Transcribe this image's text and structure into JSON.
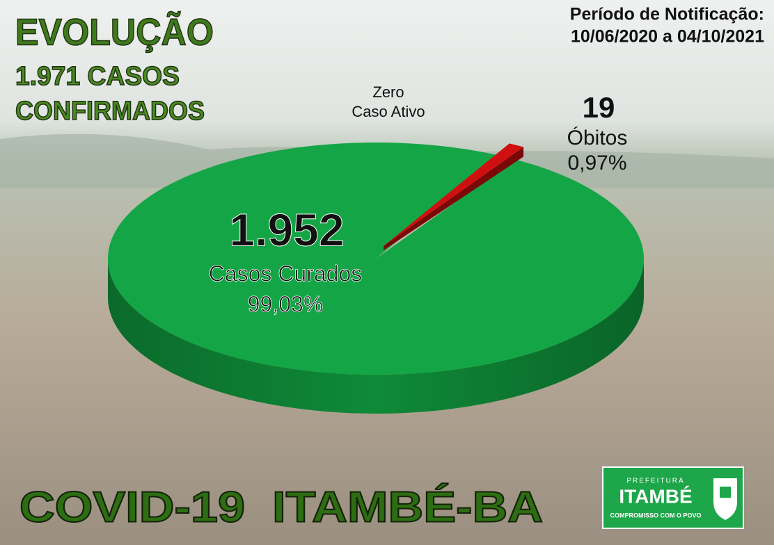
{
  "chart_data": {
    "type": "pie",
    "title": "EVOLUÇÃO",
    "subtitle": [
      "1.971 CASOS",
      "CONFIRMADOS"
    ],
    "period": [
      "Período de Notificação:",
      "10/06/2020 a 04/10/2021"
    ],
    "annotation": [
      "Zero",
      "Caso Ativo"
    ],
    "categories": [
      "Casos Curados",
      "Óbitos"
    ],
    "values": [
      1952,
      19
    ],
    "value_labels": [
      "1.952",
      "19"
    ],
    "percent_labels": [
      "99,03%",
      "0,97%"
    ],
    "colors": [
      "#14a646",
      "#d01010"
    ]
  },
  "footer": "COVID-19  ITAMBÉ-BA",
  "logo": {
    "top": "PREFEITURA",
    "name": "ITAMBÉ",
    "motto": "COMPROMISSO COM O POVO"
  }
}
